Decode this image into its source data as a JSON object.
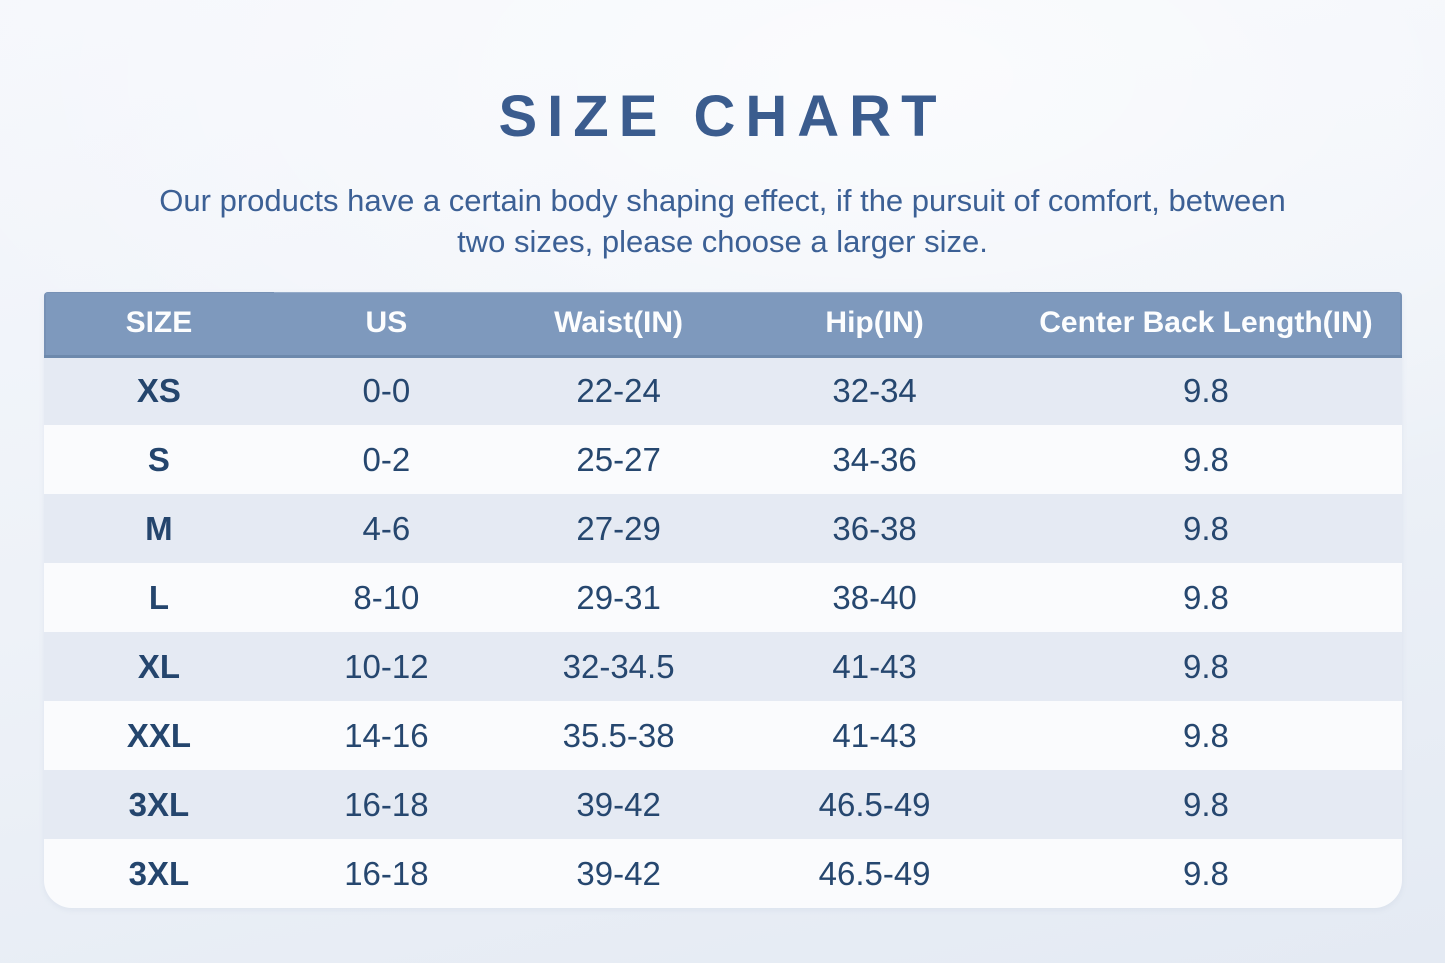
{
  "header": {
    "title": "SIZE CHART",
    "subtitle_lines": [
      "Our products have a certain body shaping effect, if the pursuit of comfort, between",
      "two sizes, please choose a larger size."
    ]
  },
  "colors": {
    "title_text": "#3b5c8e",
    "subtitle_text": "#3c6095",
    "table_header_bg": "#7e99bd",
    "table_header_text": "#fcfdfe",
    "row_tinted_bg": "#e5eaf3",
    "row_white_bg": "#fafbfd",
    "cell_text": "#26476f",
    "page_bg": "#eef2f8"
  },
  "chart_data": {
    "type": "table",
    "title": "SIZE CHART",
    "columns": [
      "SIZE",
      "US",
      "Waist(IN)",
      "Hip(IN)",
      "Center Back Length(IN)"
    ],
    "rows": [
      [
        "XS",
        "0-0",
        "22-24",
        "32-34",
        "9.8"
      ],
      [
        "S",
        "0-2",
        "25-27",
        "34-36",
        "9.8"
      ],
      [
        "M",
        "4-6",
        "27-29",
        "36-38",
        "9.8"
      ],
      [
        "L",
        "8-10",
        "29-31",
        "38-40",
        "9.8"
      ],
      [
        "XL",
        "10-12",
        "32-34.5",
        "41-43",
        "9.8"
      ],
      [
        "XXL",
        "14-16",
        "35.5-38",
        "41-43",
        "9.8"
      ],
      [
        "3XL",
        "16-18",
        "39-42",
        "46.5-49",
        "9.8"
      ],
      [
        "3XL",
        "16-18",
        "39-42",
        "46.5-49",
        "9.8"
      ]
    ],
    "layout_hints": {
      "header_row_shaded": true,
      "alternating_row_tint": "odd rows tinted",
      "all_cells_centered": true
    }
  }
}
